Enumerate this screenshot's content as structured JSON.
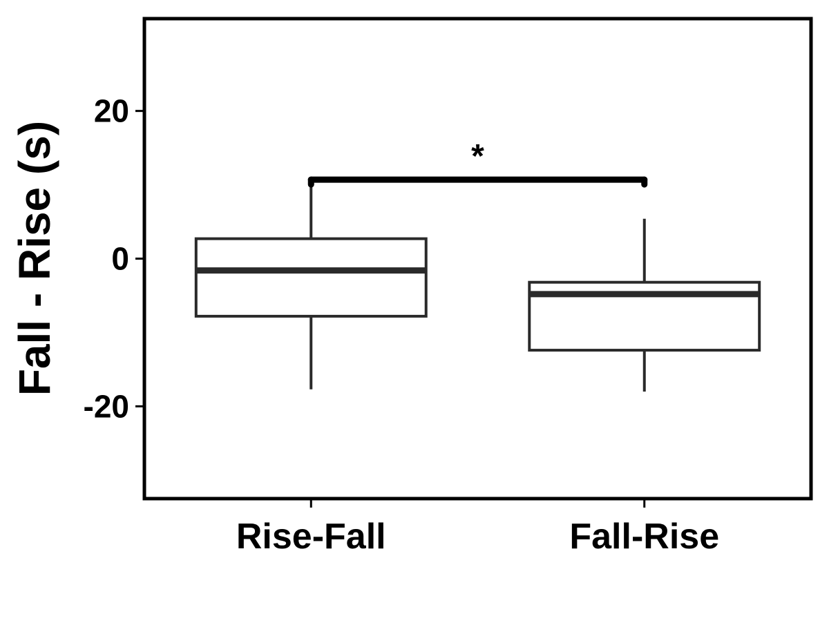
{
  "chart_data": {
    "type": "box",
    "title": "",
    "xlabel": "",
    "ylabel": "Fall - Rise (s)",
    "ylim": [
      -32.5,
      32.5
    ],
    "yticks": [
      -20,
      0,
      20
    ],
    "ytick_labels": [
      "-20",
      "0",
      "20"
    ],
    "categories": [
      "Rise-Fall",
      "Fall-Rise"
    ],
    "boxes": [
      {
        "category": "Rise-Fall",
        "whisker_low": -17.7,
        "q1": -7.8,
        "median": -1.6,
        "q3": 2.7,
        "whisker_high": 9.7
      },
      {
        "category": "Fall-Rise",
        "whisker_low": -18.0,
        "q1": -12.4,
        "median": -4.8,
        "q3": -3.2,
        "whisker_high": 5.4
      }
    ],
    "significance": {
      "label": "*",
      "from": "Rise-Fall",
      "to": "Fall-Rise",
      "y": 10.7
    },
    "grid": false,
    "legend": "none",
    "colors": {
      "box_stroke": "#2a2a2a",
      "bracket": "#000000",
      "frame": "#000000"
    }
  }
}
